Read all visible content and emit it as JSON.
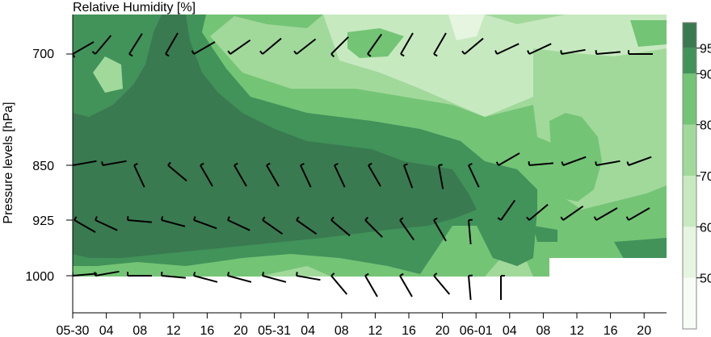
{
  "chart_data": {
    "type": "contour",
    "title": "Relative Humidity [%]",
    "ylabel": "Pressure levels [hPa]",
    "xlabel": "",
    "x_tick_labels": [
      "05-30",
      "04",
      "08",
      "12",
      "16",
      "20",
      "05-31",
      "04",
      "08",
      "12",
      "16",
      "20",
      "06-01",
      "04",
      "08",
      "12",
      "16",
      "20"
    ],
    "y_levels": [
      700,
      850,
      925,
      1000
    ],
    "y_tick_labels": [
      "700",
      "850",
      "925",
      "1000"
    ],
    "colorbar": {
      "tick_labels": [
        "50",
        "60",
        "70",
        "80",
        "90",
        "95"
      ],
      "levels": [
        40,
        50,
        60,
        70,
        80,
        90,
        95,
        100
      ],
      "colors": [
        "#f7fcf5",
        "#e5f5e0",
        "#c7e9c0",
        "#a1d99b",
        "#74c476",
        "#41935a",
        "#3a7a50"
      ]
    },
    "wind_barbs": {
      "description": "Wind barbs at each pressure level every ~3 h",
      "levels": [
        700,
        850,
        925,
        1000
      ]
    }
  }
}
